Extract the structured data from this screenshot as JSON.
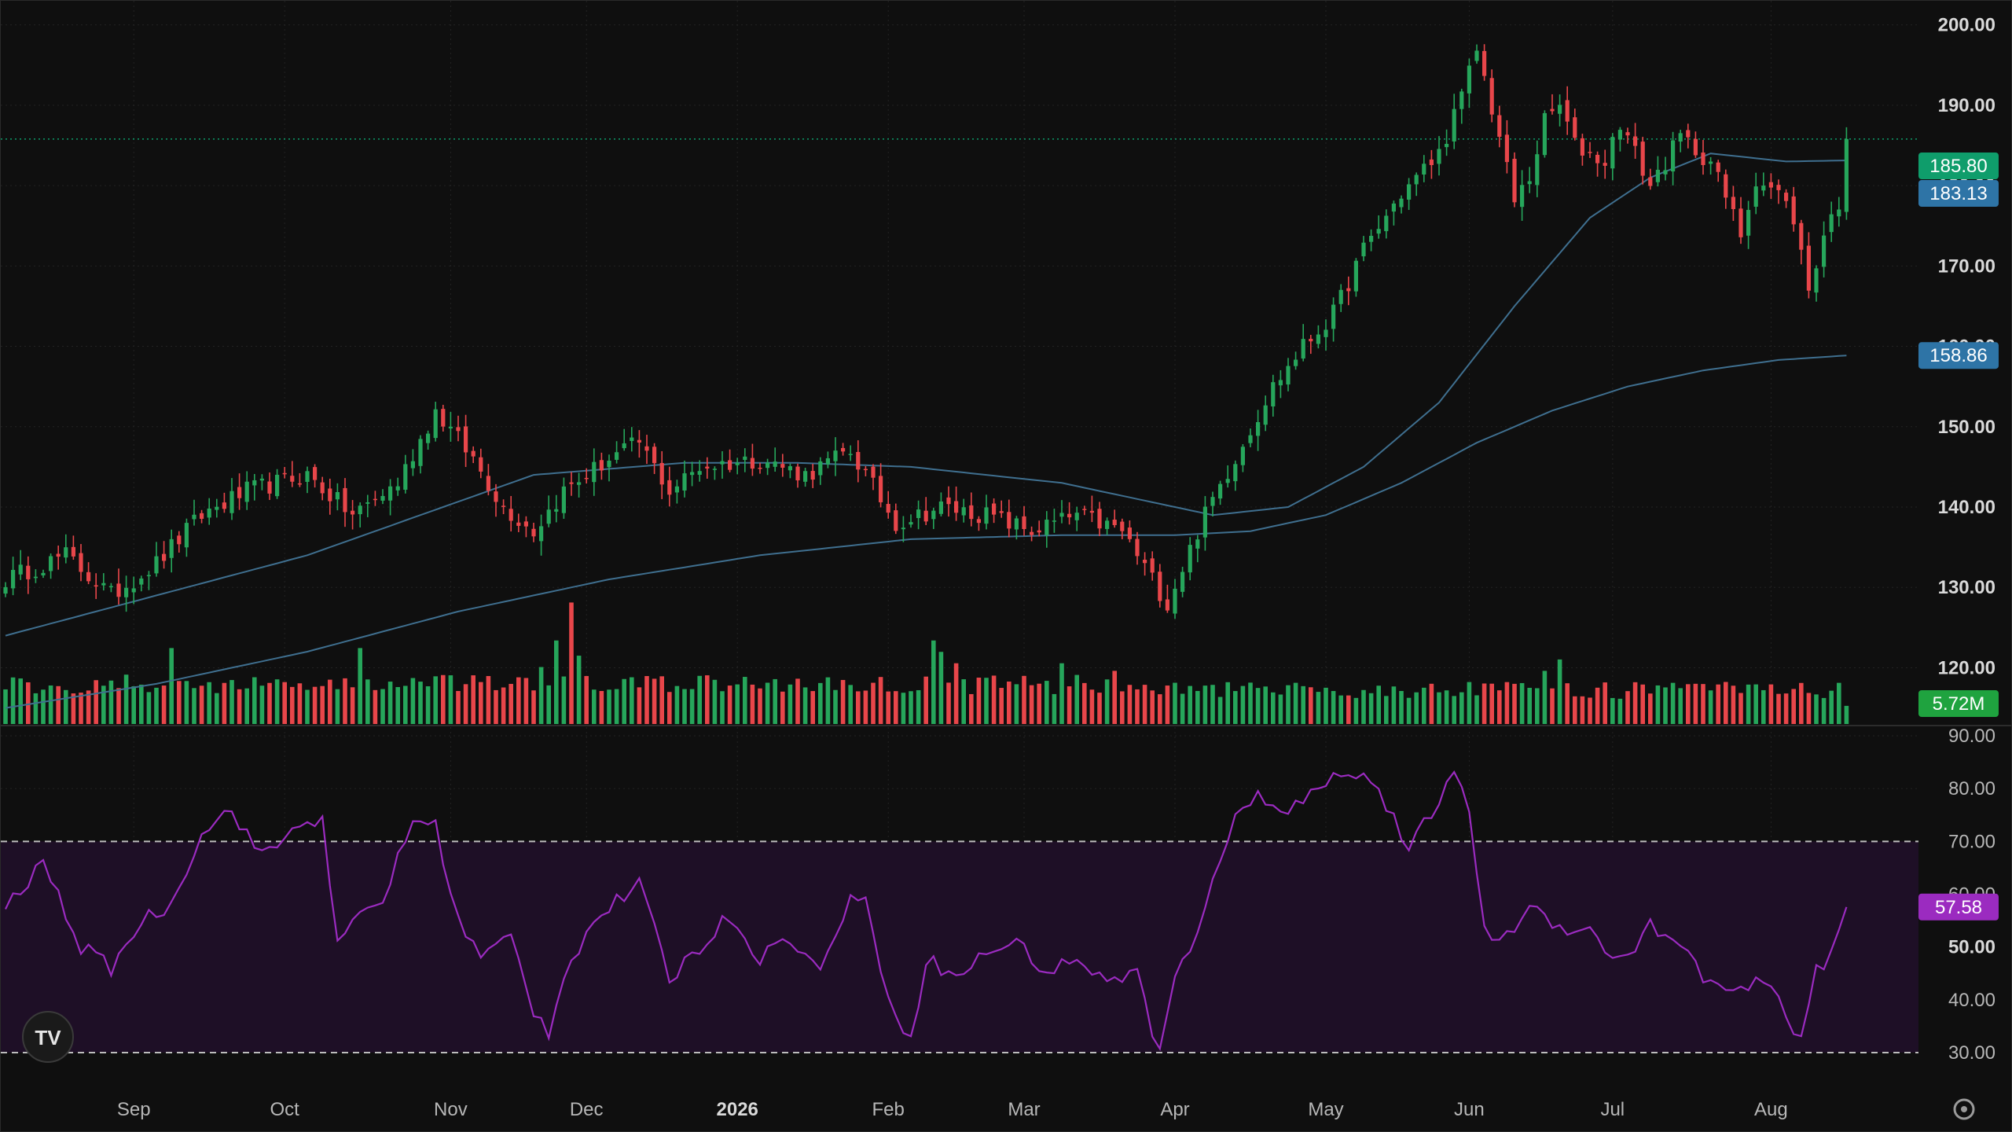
{
  "colors": {
    "background": "#0f0f0f",
    "grid": "#232323",
    "up": "#26a65b",
    "down": "#e8464a",
    "ma_line": "#3f6f8f",
    "rsi_line": "#9b2bc0",
    "rsi_band_fill": "#1e0f26",
    "last_price_tag": "#0f9d6b",
    "ma_tag": "#2e74a6",
    "volume_tag": "#1fa33f",
    "rsi_tag": "#9b2bc0"
  },
  "branding": {
    "logo_text": "TV",
    "logo_icon": "tradingview-logo-icon"
  },
  "settings_icon": "gear-icon",
  "chart_data": {
    "type": "candlestick",
    "title": "",
    "price_axis": {
      "ylim": [
        113,
        203
      ],
      "ticks": [
        {
          "value": 200,
          "label": "200.00"
        },
        {
          "value": 190,
          "label": "190.00"
        },
        {
          "value": 180,
          "label": "180.00"
        },
        {
          "value": 170,
          "label": "170.00"
        },
        {
          "value": 160,
          "label": "160.00"
        },
        {
          "value": 150,
          "label": "150.00"
        },
        {
          "value": 140,
          "label": "140.00"
        },
        {
          "value": 130,
          "label": "130.00"
        },
        {
          "value": 120,
          "label": "120.00"
        }
      ],
      "tags": [
        {
          "label": "185.80",
          "value": 185.8,
          "kind": "last_price"
        },
        {
          "label": "183.13",
          "value": 183.13,
          "kind": "ma_short"
        },
        {
          "label": "158.86",
          "value": 158.86,
          "kind": "ma_long"
        }
      ]
    },
    "time_axis": {
      "labels": [
        {
          "label": "Sep",
          "index": 17,
          "bold": false
        },
        {
          "label": "Oct",
          "index": 37,
          "bold": false
        },
        {
          "label": "Nov",
          "index": 59,
          "bold": false
        },
        {
          "label": "Dec",
          "index": 77,
          "bold": false
        },
        {
          "label": "2026",
          "index": 97,
          "bold": true
        },
        {
          "label": "Feb",
          "index": 117,
          "bold": false
        },
        {
          "label": "Mar",
          "index": 135,
          "bold": false
        },
        {
          "label": "Apr",
          "index": 155,
          "bold": false
        },
        {
          "label": "May",
          "index": 175,
          "bold": false
        },
        {
          "label": "Jun",
          "index": 194,
          "bold": false
        },
        {
          "label": "Jul",
          "index": 213,
          "bold": false
        },
        {
          "label": "Aug",
          "index": 234,
          "bold": false
        }
      ]
    },
    "close_keypoints": [
      [
        0,
        131
      ],
      [
        8,
        134
      ],
      [
        14,
        129
      ],
      [
        20,
        133
      ],
      [
        26,
        139
      ],
      [
        32,
        142
      ],
      [
        40,
        144
      ],
      [
        46,
        139
      ],
      [
        52,
        143
      ],
      [
        57,
        152
      ],
      [
        62,
        146
      ],
      [
        66,
        140
      ],
      [
        70,
        137
      ],
      [
        74,
        142
      ],
      [
        80,
        146
      ],
      [
        84,
        148
      ],
      [
        88,
        142
      ],
      [
        92,
        145
      ],
      [
        100,
        146
      ],
      [
        106,
        144
      ],
      [
        112,
        147
      ],
      [
        118,
        138
      ],
      [
        124,
        140
      ],
      [
        130,
        139
      ],
      [
        136,
        137
      ],
      [
        142,
        139
      ],
      [
        148,
        137
      ],
      [
        152,
        131
      ],
      [
        154,
        128
      ],
      [
        158,
        137
      ],
      [
        160,
        141
      ],
      [
        164,
        148
      ],
      [
        168,
        155
      ],
      [
        172,
        160
      ],
      [
        176,
        164
      ],
      [
        180,
        172
      ],
      [
        185,
        179
      ],
      [
        190,
        184
      ],
      [
        193,
        191
      ],
      [
        195,
        197
      ],
      [
        198,
        186
      ],
      [
        200,
        178
      ],
      [
        202,
        181
      ],
      [
        204,
        188
      ],
      [
        206,
        190
      ],
      [
        208,
        185
      ],
      [
        212,
        183
      ],
      [
        214,
        188
      ],
      [
        218,
        180
      ],
      [
        222,
        186
      ],
      [
        226,
        183
      ],
      [
        230,
        174
      ],
      [
        232,
        181
      ],
      [
        235,
        179
      ],
      [
        237,
        176
      ],
      [
        239,
        167
      ],
      [
        241,
        174
      ],
      [
        243,
        178
      ],
      [
        244,
        186
      ]
    ],
    "ma_short_keypoints": [
      [
        0,
        124
      ],
      [
        20,
        129
      ],
      [
        40,
        134
      ],
      [
        55,
        139
      ],
      [
        70,
        144
      ],
      [
        90,
        145.5
      ],
      [
        105,
        145.5
      ],
      [
        120,
        145
      ],
      [
        140,
        143
      ],
      [
        150,
        141
      ],
      [
        160,
        139
      ],
      [
        170,
        140
      ],
      [
        180,
        145
      ],
      [
        190,
        153
      ],
      [
        200,
        165
      ],
      [
        210,
        176
      ],
      [
        218,
        181
      ],
      [
        226,
        184
      ],
      [
        236,
        183
      ],
      [
        244,
        183.13
      ]
    ],
    "ma_long_keypoints": [
      [
        0,
        115
      ],
      [
        20,
        118
      ],
      [
        40,
        122
      ],
      [
        60,
        127
      ],
      [
        80,
        131
      ],
      [
        100,
        134
      ],
      [
        120,
        136
      ],
      [
        140,
        136.5
      ],
      [
        155,
        136.5
      ],
      [
        165,
        137
      ],
      [
        175,
        139
      ],
      [
        185,
        143
      ],
      [
        195,
        148
      ],
      [
        205,
        152
      ],
      [
        215,
        155
      ],
      [
        225,
        157
      ],
      [
        235,
        158.3
      ],
      [
        244,
        158.86
      ]
    ],
    "volume": {
      "last_label": "5.72M",
      "spikes": [
        [
          22,
          2.0
        ],
        [
          47,
          2.0
        ],
        [
          71,
          1.5
        ],
        [
          73,
          2.2
        ],
        [
          75,
          3.2
        ],
        [
          76,
          1.8
        ],
        [
          123,
          2.2
        ],
        [
          124,
          1.9
        ],
        [
          126,
          1.6
        ],
        [
          140,
          1.6
        ],
        [
          147,
          1.4
        ],
        [
          204,
          1.4
        ],
        [
          206,
          1.7
        ]
      ]
    },
    "rsi": {
      "ylim": [
        30,
        90
      ],
      "band": [
        30,
        70
      ],
      "last_label": "57.58",
      "ticks": [
        {
          "value": 90,
          "label": "90.00"
        },
        {
          "value": 80,
          "label": "80.00"
        },
        {
          "value": 70,
          "label": "70.00"
        },
        {
          "value": 60,
          "label": "60.00"
        },
        {
          "value": 50,
          "label": "50.00"
        },
        {
          "value": 40,
          "label": "40.00"
        },
        {
          "value": 30,
          "label": "30.00"
        }
      ],
      "keypoints": [
        [
          0,
          57
        ],
        [
          5,
          66
        ],
        [
          10,
          50
        ],
        [
          14,
          46
        ],
        [
          18,
          55
        ],
        [
          22,
          58
        ],
        [
          26,
          72
        ],
        [
          30,
          76
        ],
        [
          34,
          67
        ],
        [
          38,
          72
        ],
        [
          42,
          75
        ],
        [
          44,
          50
        ],
        [
          47,
          56
        ],
        [
          50,
          59
        ],
        [
          54,
          74
        ],
        [
          57,
          73
        ],
        [
          60,
          55
        ],
        [
          63,
          48
        ],
        [
          67,
          52
        ],
        [
          70,
          38
        ],
        [
          72,
          34
        ],
        [
          74,
          45
        ],
        [
          78,
          55
        ],
        [
          84,
          62
        ],
        [
          88,
          44
        ],
        [
          92,
          50
        ],
        [
          96,
          56
        ],
        [
          100,
          48
        ],
        [
          104,
          52
        ],
        [
          108,
          45
        ],
        [
          112,
          60
        ],
        [
          114,
          58
        ],
        [
          117,
          41
        ],
        [
          120,
          32
        ],
        [
          122,
          48
        ],
        [
          126,
          44
        ],
        [
          130,
          49
        ],
        [
          134,
          51
        ],
        [
          138,
          45
        ],
        [
          142,
          48
        ],
        [
          146,
          43
        ],
        [
          150,
          46
        ],
        [
          152,
          33
        ],
        [
          153,
          30
        ],
        [
          155,
          44
        ],
        [
          158,
          52
        ],
        [
          160,
          64
        ],
        [
          163,
          74
        ],
        [
          166,
          79
        ],
        [
          170,
          76
        ],
        [
          174,
          80
        ],
        [
          178,
          84
        ],
        [
          182,
          80
        ],
        [
          186,
          68
        ],
        [
          190,
          78
        ],
        [
          192,
          82
        ],
        [
          194,
          76
        ],
        [
          196,
          54
        ],
        [
          198,
          50
        ],
        [
          202,
          58
        ],
        [
          206,
          54
        ],
        [
          210,
          53
        ],
        [
          214,
          47
        ],
        [
          218,
          54
        ],
        [
          222,
          50
        ],
        [
          226,
          43
        ],
        [
          230,
          41
        ],
        [
          233,
          44
        ],
        [
          236,
          37
        ],
        [
          238,
          33
        ],
        [
          240,
          46
        ],
        [
          242,
          48
        ],
        [
          244,
          57.58
        ]
      ]
    }
  }
}
